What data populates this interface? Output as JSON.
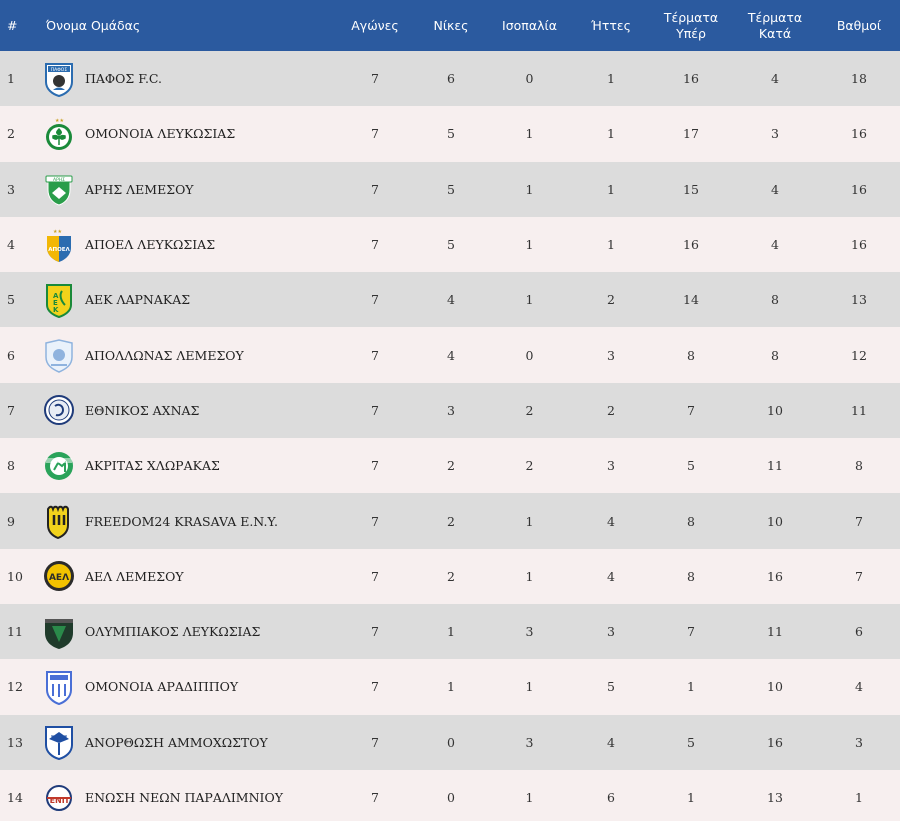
{
  "headers": {
    "rank": "#",
    "team": "Όνομα Ομάδας",
    "played": "Αγώνες",
    "wins": "Νίκες",
    "draws": "Ισοπαλία",
    "losses": "Ήττες",
    "goals_for_1": "Τέρματα",
    "goals_for_2": "Υπέρ",
    "goals_against_1": "Τέρματα",
    "goals_against_2": "Κατά",
    "points": "Βαθμοί"
  },
  "colors": {
    "header_bg": "#2b5a9f",
    "row_odd": "#dcdcdc",
    "row_even": "#f7efef"
  },
  "rows": [
    {
      "rank": "1",
      "team": "ΠΑΦΟΣ F.C.",
      "logo": "pafos-logo",
      "played": "7",
      "wins": "6",
      "draws": "0",
      "losses": "1",
      "gf": "16",
      "ga": "4",
      "pts": "18"
    },
    {
      "rank": "2",
      "team": "ΟΜΟΝΟΙΑ ΛΕΥΚΩΣΙΑΣ",
      "logo": "omonoia-logo",
      "played": "7",
      "wins": "5",
      "draws": "1",
      "losses": "1",
      "gf": "17",
      "ga": "3",
      "pts": "16"
    },
    {
      "rank": "3",
      "team": "ΑΡΗΣ ΛΕΜΕΣΟΥ",
      "logo": "aris-logo",
      "played": "7",
      "wins": "5",
      "draws": "1",
      "losses": "1",
      "gf": "15",
      "ga": "4",
      "pts": "16"
    },
    {
      "rank": "4",
      "team": "ΑΠΟΕΛ ΛΕΥΚΩΣΙΑΣ",
      "logo": "apoel-logo",
      "played": "7",
      "wins": "5",
      "draws": "1",
      "losses": "1",
      "gf": "16",
      "ga": "4",
      "pts": "16"
    },
    {
      "rank": "5",
      "team": "ΑΕΚ ΛΑΡΝΑΚΑΣ",
      "logo": "aek-logo",
      "played": "7",
      "wins": "4",
      "draws": "1",
      "losses": "2",
      "gf": "14",
      "ga": "8",
      "pts": "13"
    },
    {
      "rank": "6",
      "team": "ΑΠΟΛΛΩΝΑΣ ΛΕΜΕΣΟΥ",
      "logo": "apollon-logo",
      "played": "7",
      "wins": "4",
      "draws": "0",
      "losses": "3",
      "gf": "8",
      "ga": "8",
      "pts": "12"
    },
    {
      "rank": "7",
      "team": "ΕΘΝΙΚΟΣ ΑΧΝΑΣ",
      "logo": "ethnikos-logo",
      "played": "7",
      "wins": "3",
      "draws": "2",
      "losses": "2",
      "gf": "7",
      "ga": "10",
      "pts": "11"
    },
    {
      "rank": "8",
      "team": "ΑΚΡΙΤΑΣ ΧΛΩΡΑΚΑΣ",
      "logo": "akritas-logo",
      "played": "7",
      "wins": "2",
      "draws": "2",
      "losses": "3",
      "gf": "5",
      "ga": "11",
      "pts": "8"
    },
    {
      "rank": "9",
      "team": "FREEDOM24 KRASAVA E.N.Y.",
      "logo": "krasava-logo",
      "played": "7",
      "wins": "2",
      "draws": "1",
      "losses": "4",
      "gf": "8",
      "ga": "10",
      "pts": "7"
    },
    {
      "rank": "10",
      "team": "ΑΕΛ ΛΕΜΕΣΟΥ",
      "logo": "ael-logo",
      "played": "7",
      "wins": "2",
      "draws": "1",
      "losses": "4",
      "gf": "8",
      "ga": "16",
      "pts": "7"
    },
    {
      "rank": "11",
      "team": "ΟΛΥΜΠΙΑΚΟΣ ΛΕΥΚΩΣΙΑΣ",
      "logo": "olympiakos-logo",
      "played": "7",
      "wins": "1",
      "draws": "3",
      "losses": "3",
      "gf": "7",
      "ga": "11",
      "pts": "6"
    },
    {
      "rank": "12",
      "team": "ΟΜΟΝΟΙΑ ΑΡΑΔΙΠΠΟΥ",
      "logo": "omonoia-aradippou-logo",
      "played": "7",
      "wins": "1",
      "draws": "1",
      "losses": "5",
      "gf": "1",
      "ga": "10",
      "pts": "4"
    },
    {
      "rank": "13",
      "team": "ΑΝΟΡΘΩΣΗ ΑΜΜΟΧΩΣΤΟΥ",
      "logo": "anorthosis-logo",
      "played": "7",
      "wins": "0",
      "draws": "3",
      "losses": "4",
      "gf": "5",
      "ga": "16",
      "pts": "3"
    },
    {
      "rank": "14",
      "team": "ΕΝΩΣΗ ΝΕΩΝ ΠΑΡΑΛΙΜΝΙΟΥ",
      "logo": "enp-logo",
      "played": "7",
      "wins": "0",
      "draws": "1",
      "losses": "6",
      "gf": "1",
      "ga": "13",
      "pts": "1"
    }
  ]
}
